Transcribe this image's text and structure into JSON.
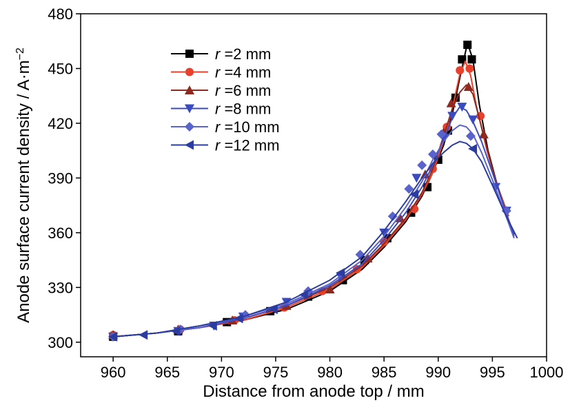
{
  "chart_data": {
    "type": "line",
    "xlabel": "Distance from anode top / mm",
    "ylabel_main": "Anode surface current density / A·m",
    "ylabel_sup": "−2",
    "xlim": [
      957,
      1000
    ],
    "ylim": [
      292,
      480
    ],
    "x_ticks": [
      960,
      965,
      970,
      975,
      980,
      985,
      990,
      995,
      1000
    ],
    "x_tick_labels": [
      "960",
      "965",
      "970",
      "975",
      "980",
      "985",
      "990",
      "995",
      "1000"
    ],
    "y_ticks": [
      300,
      330,
      360,
      390,
      420,
      450,
      480
    ],
    "y_tick_labels": [
      "300",
      "330",
      "360",
      "390",
      "420",
      "450",
      "480"
    ],
    "legend_position": "upper-left",
    "series": [
      {
        "name_prefix": "r",
        "name_suffix": " =2 mm",
        "color": "#000000",
        "marker": "square",
        "line": [
          [
            960,
            303
          ],
          [
            964,
            305
          ],
          [
            968,
            308
          ],
          [
            972,
            312
          ],
          [
            976,
            318
          ],
          [
            980,
            328
          ],
          [
            983,
            340
          ],
          [
            985,
            352
          ],
          [
            987,
            366
          ],
          [
            988.5,
            380
          ],
          [
            989.5,
            393
          ],
          [
            990.5,
            408
          ],
          [
            991.3,
            425
          ],
          [
            992,
            445
          ],
          [
            992.7,
            464
          ],
          [
            993.2,
            455
          ],
          [
            993.8,
            430
          ],
          [
            994.6,
            405
          ],
          [
            995.5,
            385
          ],
          [
            996.5,
            369
          ]
        ],
        "markers": [
          [
            960,
            303
          ],
          [
            966,
            306
          ],
          [
            970.5,
            311
          ],
          [
            974.5,
            317
          ],
          [
            978,
            325
          ],
          [
            981.2,
            334
          ],
          [
            983.2,
            345
          ],
          [
            985.3,
            357
          ],
          [
            987.5,
            371
          ],
          [
            989,
            385
          ],
          [
            990,
            400
          ],
          [
            990.9,
            416
          ],
          [
            991.6,
            434
          ],
          [
            992.2,
            455
          ],
          [
            992.7,
            463
          ],
          [
            993.1,
            455
          ]
        ]
      },
      {
        "name_prefix": "r",
        "name_suffix": " =4 mm",
        "color": "#e8402a",
        "marker": "circle",
        "line": [
          [
            960,
            303
          ],
          [
            964,
            305
          ],
          [
            968,
            308
          ],
          [
            972,
            312
          ],
          [
            976,
            319
          ],
          [
            980,
            329
          ],
          [
            983,
            341
          ],
          [
            985,
            353
          ],
          [
            987,
            367
          ],
          [
            988.5,
            381
          ],
          [
            989.5,
            393
          ],
          [
            990.5,
            410
          ],
          [
            991.3,
            428
          ],
          [
            992,
            447
          ],
          [
            992.5,
            454
          ],
          [
            993,
            446
          ],
          [
            993.5,
            430
          ],
          [
            994.5,
            405
          ],
          [
            995.5,
            385
          ],
          [
            996.5,
            369
          ]
        ],
        "markers": [
          [
            960,
            304
          ],
          [
            966.2,
            307
          ],
          [
            971.2,
            312
          ],
          [
            975.8,
            319
          ],
          [
            979.3,
            328
          ],
          [
            982.5,
            340
          ],
          [
            985,
            355
          ],
          [
            987.8,
            373
          ],
          [
            989.5,
            395
          ],
          [
            990.8,
            418
          ],
          [
            992,
            449
          ],
          [
            992.9,
            450
          ],
          [
            993.9,
            424
          ]
        ]
      },
      {
        "name_prefix": "r",
        "name_suffix": " =6 mm",
        "color": "#8e2a20",
        "marker": "triangle-up",
        "line": [
          [
            960,
            303
          ],
          [
            964,
            305
          ],
          [
            968,
            308
          ],
          [
            972,
            313
          ],
          [
            976,
            320
          ],
          [
            980,
            330
          ],
          [
            983,
            342
          ],
          [
            985,
            354
          ],
          [
            987,
            368
          ],
          [
            988.5,
            382
          ],
          [
            989.5,
            395
          ],
          [
            990.5,
            413
          ],
          [
            991.3,
            428
          ],
          [
            992,
            437
          ],
          [
            992.6,
            441
          ],
          [
            993.2,
            436
          ],
          [
            994,
            418
          ],
          [
            995,
            395
          ],
          [
            996.2,
            372
          ],
          [
            997,
            359
          ]
        ],
        "markers": [
          [
            960,
            304
          ],
          [
            966,
            307
          ],
          [
            971,
            312
          ],
          [
            976,
            320
          ],
          [
            980,
            329
          ],
          [
            983.5,
            346
          ],
          [
            986.5,
            368
          ],
          [
            988.8,
            392
          ],
          [
            990.5,
            415
          ],
          [
            991.2,
            431
          ],
          [
            992.8,
            440
          ],
          [
            994.2,
            414
          ]
        ]
      },
      {
        "name_prefix": "r",
        "name_suffix": " =8 mm",
        "color": "#3a4bc0",
        "marker": "triangle-down",
        "line": [
          [
            960,
            303
          ],
          [
            964,
            305
          ],
          [
            968,
            308
          ],
          [
            972,
            313
          ],
          [
            976,
            320
          ],
          [
            980,
            331
          ],
          [
            983,
            343
          ],
          [
            985,
            356
          ],
          [
            987,
            371
          ],
          [
            988.5,
            385
          ],
          [
            989.5,
            397
          ],
          [
            990.5,
            411
          ],
          [
            991.3,
            423
          ],
          [
            992,
            429
          ],
          [
            992.6,
            427
          ],
          [
            993.2,
            421
          ],
          [
            994,
            410
          ],
          [
            995,
            393
          ],
          [
            996.2,
            372
          ],
          [
            997,
            358
          ]
        ],
        "markers": [
          [
            960,
            303
          ],
          [
            966,
            306
          ],
          [
            969.3,
            309
          ],
          [
            972,
            314
          ],
          [
            976,
            322
          ],
          [
            981,
            336
          ],
          [
            985,
            360
          ],
          [
            988,
            390
          ],
          [
            990.5,
            412
          ],
          [
            991.3,
            424
          ],
          [
            992.2,
            429
          ],
          [
            993.2,
            422
          ],
          [
            995.3,
            385
          ],
          [
            996.3,
            372
          ]
        ]
      },
      {
        "name_prefix": "r",
        "name_suffix": " =10 mm",
        "color": "#5a62cc",
        "marker": "diamond",
        "line": [
          [
            960,
            303
          ],
          [
            964,
            305
          ],
          [
            968,
            308
          ],
          [
            972,
            314
          ],
          [
            976,
            321
          ],
          [
            980,
            332
          ],
          [
            983,
            345
          ],
          [
            985,
            358
          ],
          [
            987,
            374
          ],
          [
            988.5,
            388
          ],
          [
            989.5,
            400
          ],
          [
            990.5,
            410
          ],
          [
            991.3,
            416
          ],
          [
            992,
            419
          ],
          [
            992.6,
            418
          ],
          [
            993.2,
            414
          ],
          [
            994,
            404
          ],
          [
            995,
            389
          ],
          [
            996.2,
            370
          ],
          [
            997,
            357
          ]
        ],
        "markers": [
          [
            960,
            303
          ],
          [
            966.2,
            307
          ],
          [
            972.2,
            315
          ],
          [
            978,
            328
          ],
          [
            982.8,
            348
          ],
          [
            985.8,
            369
          ],
          [
            987.3,
            384
          ],
          [
            988.5,
            397
          ],
          [
            989.5,
            403
          ],
          [
            990.3,
            414
          ],
          [
            993,
            413
          ],
          [
            996.3,
            372
          ]
        ]
      },
      {
        "name_prefix": "r",
        "name_suffix": " =12 mm",
        "color": "#2b3ca0",
        "marker": "triangle-left",
        "line": [
          [
            960,
            303
          ],
          [
            964,
            305
          ],
          [
            968,
            309
          ],
          [
            972,
            314
          ],
          [
            976,
            322
          ],
          [
            980,
            334
          ],
          [
            983,
            347
          ],
          [
            985,
            361
          ],
          [
            987,
            377
          ],
          [
            988.5,
            390
          ],
          [
            989.5,
            398
          ],
          [
            990.5,
            404
          ],
          [
            991.3,
            408
          ],
          [
            992,
            410
          ],
          [
            992.6,
            409
          ],
          [
            993.2,
            406
          ],
          [
            994,
            399
          ],
          [
            995,
            386
          ],
          [
            996.2,
            370
          ],
          [
            997.3,
            357
          ]
        ],
        "markers": [
          [
            960,
            303
          ],
          [
            962.8,
            304
          ],
          [
            965.8,
            306
          ],
          [
            969.2,
            309
          ],
          [
            971.6,
            313
          ],
          [
            974.8,
            318
          ],
          [
            977.6,
            326
          ],
          [
            981,
            338
          ],
          [
            987.8,
            381
          ],
          [
            993.2,
            406
          ]
        ]
      }
    ]
  }
}
